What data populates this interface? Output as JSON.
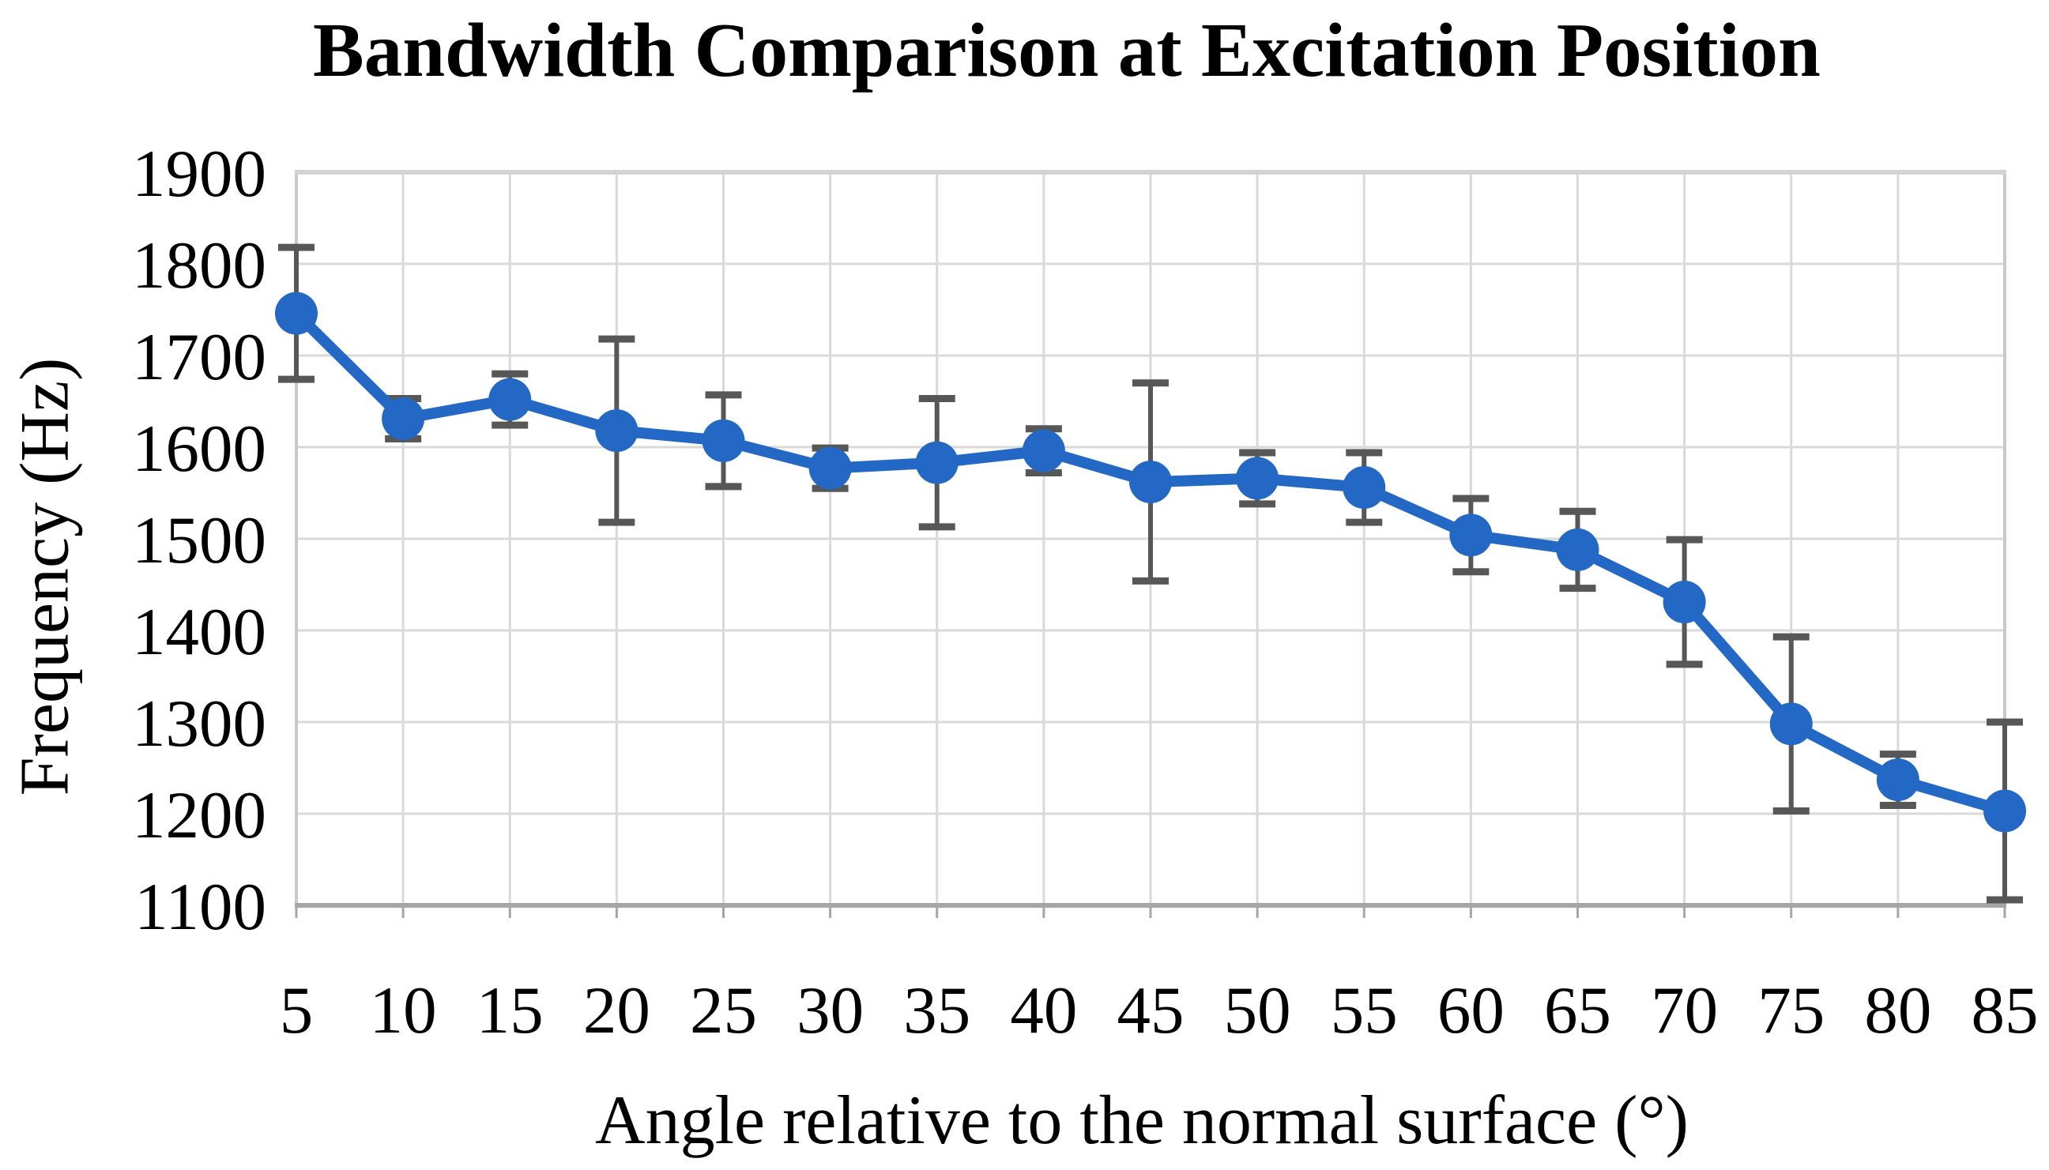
{
  "chart_data": {
    "type": "line",
    "title": "Bandwidth Comparison at Excitation Position",
    "xlabel": "Angle relative to the normal surface (°)",
    "ylabel": "Frequency (Hz)",
    "categories": [
      5,
      10,
      15,
      20,
      25,
      30,
      35,
      40,
      45,
      50,
      55,
      60,
      65,
      70,
      75,
      80,
      85
    ],
    "series": [
      {
        "name": "Bandwidth",
        "values": [
          1746,
          1631,
          1652,
          1618,
          1607,
          1577,
          1583,
          1596,
          1562,
          1566,
          1556,
          1504,
          1488,
          1431,
          1298,
          1237,
          1203
        ],
        "error_bars": [
          72,
          22,
          28,
          100,
          50,
          22,
          70,
          24,
          108,
          28,
          38,
          40,
          42,
          68,
          95,
          28,
          97
        ]
      }
    ],
    "ylim": [
      1100,
      1900
    ],
    "ytick_step": 100,
    "grid": true,
    "legend_position": "none",
    "marker": "circle",
    "colors": {
      "series": "#2368C4",
      "error_bar": "#575757",
      "gridline": "#D9D9D9",
      "plot_border": "#C9C9C9",
      "top_border": "#D3D3D3",
      "bottom_axis": "#A6A6A6",
      "text": "#000000"
    }
  }
}
